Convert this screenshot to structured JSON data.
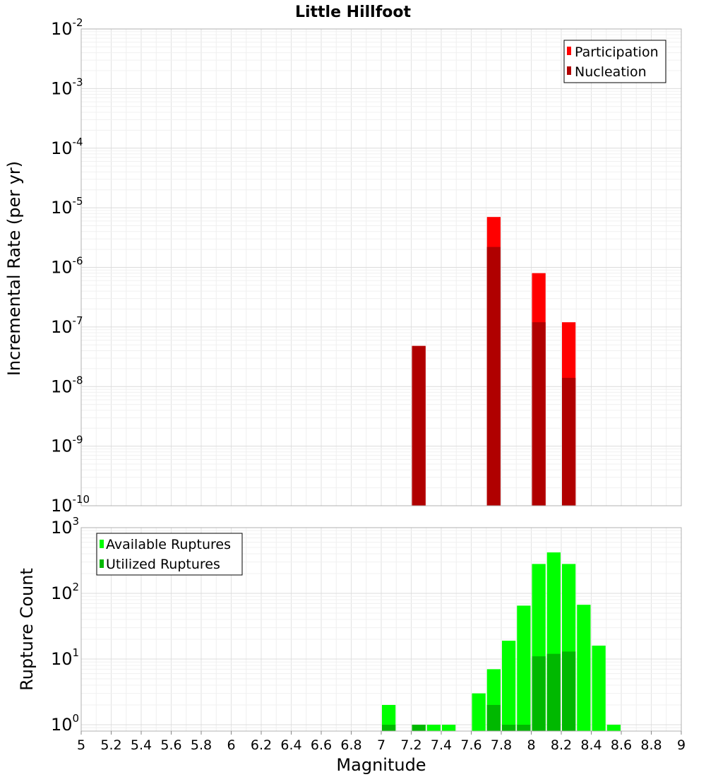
{
  "chart_data": [
    {
      "type": "bar",
      "title": "Little Hillfoot",
      "xlabel": "",
      "ylabel": "Incremental Rate (per yr)",
      "yscale": "log",
      "ylim": [
        1e-10,
        0.01
      ],
      "xlim": [
        5,
        9
      ],
      "grid": true,
      "legend_position": "top-right",
      "y_ticks": [
        {
          "base": "10",
          "exp": "-10"
        },
        {
          "base": "10",
          "exp": "-9"
        },
        {
          "base": "10",
          "exp": "-8"
        },
        {
          "base": "10",
          "exp": "-7"
        },
        {
          "base": "10",
          "exp": "-6"
        },
        {
          "base": "10",
          "exp": "-5"
        },
        {
          "base": "10",
          "exp": "-4"
        },
        {
          "base": "10",
          "exp": "-3"
        },
        {
          "base": "10",
          "exp": "-2"
        }
      ],
      "series": [
        {
          "name": "Participation",
          "color": "#ff0000",
          "points": [
            [
              7.25,
              4.8e-08
            ],
            [
              7.75,
              7e-06
            ],
            [
              8.05,
              8e-07
            ],
            [
              8.25,
              1.2e-07
            ]
          ]
        },
        {
          "name": "Nucleation",
          "color": "#b00000",
          "points": [
            [
              7.25,
              4.8e-08
            ],
            [
              7.75,
              2.2e-06
            ],
            [
              8.05,
              1.2e-07
            ],
            [
              8.25,
              1.4e-08
            ]
          ]
        }
      ]
    },
    {
      "type": "bar",
      "title": "",
      "xlabel": "Magnitude",
      "ylabel": "Rupture Count",
      "yscale": "log",
      "ylim": [
        0.8,
        1000
      ],
      "xlim": [
        5,
        9
      ],
      "grid": true,
      "legend_position": "top-left",
      "x_ticks": [
        "5",
        "5.2",
        "5.4",
        "5.6",
        "5.8",
        "6",
        "6.2",
        "6.4",
        "6.6",
        "6.8",
        "7",
        "7.2",
        "7.4",
        "7.6",
        "7.8",
        "8",
        "8.2",
        "8.4",
        "8.6",
        "8.8",
        "9"
      ],
      "y_ticks": [
        {
          "base": "10",
          "exp": "0"
        },
        {
          "base": "10",
          "exp": "1"
        },
        {
          "base": "10",
          "exp": "2"
        },
        {
          "base": "10",
          "exp": "3"
        }
      ],
      "series": [
        {
          "name": "Available Ruptures",
          "color": "#00ff00",
          "points": [
            [
              7.05,
              2
            ],
            [
              7.25,
              1
            ],
            [
              7.35,
              1
            ],
            [
              7.45,
              1
            ],
            [
              7.65,
              3
            ],
            [
              7.75,
              7
            ],
            [
              7.85,
              19
            ],
            [
              7.95,
              65
            ],
            [
              8.05,
              280
            ],
            [
              8.15,
              420
            ],
            [
              8.25,
              280
            ],
            [
              8.35,
              67
            ],
            [
              8.45,
              16
            ],
            [
              8.55,
              1
            ]
          ]
        },
        {
          "name": "Utilized Ruptures",
          "color": "#00b800",
          "points": [
            [
              7.05,
              1
            ],
            [
              7.25,
              1
            ],
            [
              7.75,
              2
            ],
            [
              7.85,
              1
            ],
            [
              7.95,
              1
            ],
            [
              8.05,
              11
            ],
            [
              8.15,
              12
            ],
            [
              8.25,
              13
            ]
          ]
        }
      ]
    }
  ]
}
